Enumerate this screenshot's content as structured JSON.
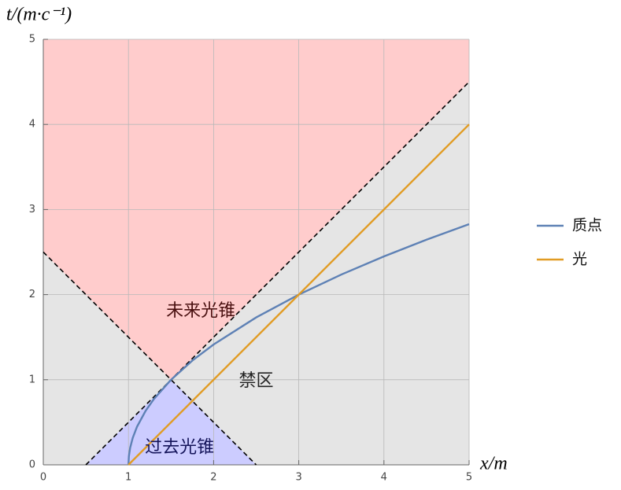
{
  "chart_data": {
    "type": "line",
    "xlabel": "x/m",
    "ylabel": "t/(m·c⁻¹)",
    "xlim": [
      0,
      5
    ],
    "ylim": [
      0,
      5
    ],
    "xticks": [
      0,
      1,
      2,
      3,
      4,
      5
    ],
    "yticks": [
      0,
      1,
      2,
      3,
      4,
      5
    ],
    "grid": true,
    "legend": "right",
    "background": "#e5e5e5",
    "regions": [
      {
        "color": "#ffcccc",
        "x": [
          0,
          1.5,
          5,
          5,
          0
        ],
        "values": [
          2.5,
          1,
          4.5,
          5,
          5
        ]
      },
      {
        "color": "#ccccff",
        "x": [
          0.5,
          1.5,
          2.5
        ],
        "values": [
          0,
          1,
          0
        ]
      }
    ],
    "dashed_lines": [
      {
        "x": [
          0.5,
          5
        ],
        "values": [
          0,
          4.5
        ]
      },
      {
        "x": [
          0,
          2.5
        ],
        "values": [
          2.5,
          0
        ]
      }
    ],
    "series": [
      {
        "name": "质点",
        "color": "#5e81b5",
        "x": [
          1,
          1.005,
          1.02,
          1.05,
          1.1,
          1.2,
          1.3,
          1.5,
          1.75,
          2,
          2.5,
          3,
          3.5,
          4,
          4.5,
          5
        ],
        "values": [
          0,
          0.1,
          0.2,
          0.316,
          0.447,
          0.632,
          0.775,
          1,
          1.225,
          1.414,
          1.732,
          2,
          2.236,
          2.449,
          2.646,
          2.828
        ]
      },
      {
        "name": "光",
        "color": "#e19c24",
        "x": [
          1,
          5
        ],
        "values": [
          0,
          4
        ]
      }
    ],
    "annotations": [
      {
        "text": "未来光锥",
        "x": 1.85,
        "y": 1.8,
        "color": "#4a1010"
      },
      {
        "text": "禁区",
        "x": 2.5,
        "y": 0.98,
        "color": "#222222"
      },
      {
        "text": "过去光锥",
        "x": 1.6,
        "y": 0.2,
        "color": "#14145a"
      }
    ]
  }
}
